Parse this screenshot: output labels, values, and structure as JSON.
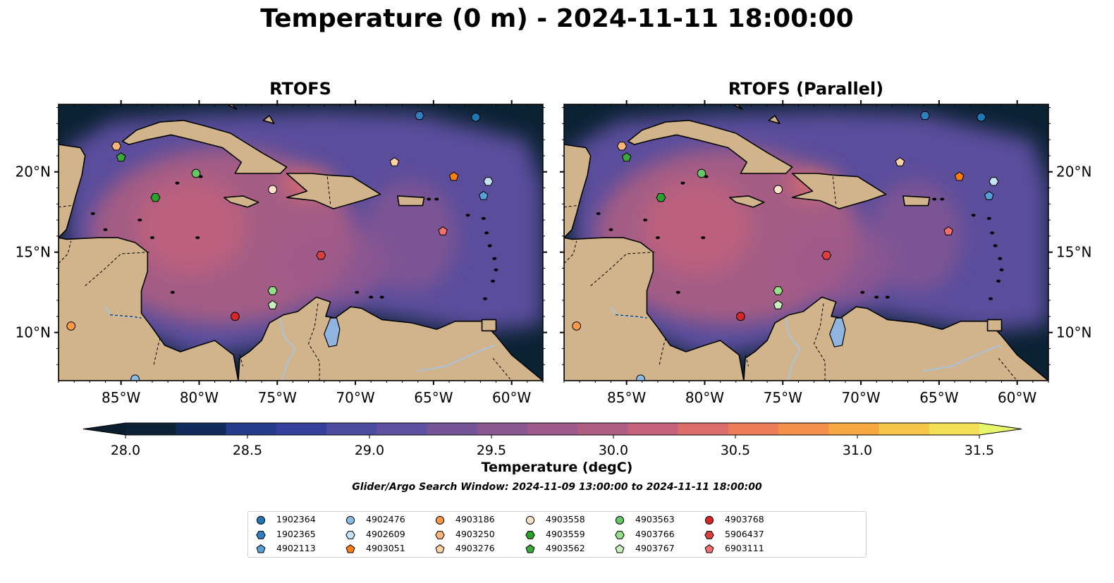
{
  "title": "Temperature (0 m) - 2024-11-11 18:00:00",
  "panels": [
    {
      "title": "RTOFS"
    },
    {
      "title": "RTOFS (Parallel)"
    }
  ],
  "axes": {
    "lon_ticks": [
      "85°W",
      "80°W",
      "75°W",
      "70°W",
      "65°W",
      "60°W"
    ],
    "lon_values": [
      -85,
      -80,
      -75,
      -70,
      -65,
      -60
    ],
    "lat_ticks": [
      "20°N",
      "15°N",
      "10°N"
    ],
    "lat_values": [
      20,
      15,
      10
    ],
    "lon_range": [
      -89,
      -58
    ],
    "lat_range": [
      7,
      24.2
    ]
  },
  "colorbar": {
    "label": "Temperature (degC)",
    "ticks": [
      "28.0",
      "28.5",
      "29.0",
      "29.5",
      "30.0",
      "30.5",
      "31.0",
      "31.5"
    ],
    "tick_values": [
      28.0,
      28.5,
      29.0,
      29.5,
      30.0,
      30.5,
      31.0,
      31.5
    ],
    "range": [
      28.0,
      31.5
    ],
    "step": 0.25,
    "extend": "both",
    "colors": [
      "#0c2133",
      "#112a5c",
      "#243a8a",
      "#34409b",
      "#4b4c9f",
      "#5f51a1",
      "#745497",
      "#8a5790",
      "#9e5a8b",
      "#b05d82",
      "#c6627a",
      "#dc6d6a",
      "#ee7c59",
      "#f5904a",
      "#f7a740",
      "#f5c649",
      "#f3df55"
    ],
    "extend_low": "#0b1e2e",
    "extend_high": "#e6f56a"
  },
  "subtitle": "Glider/Argo Search Window: 2024-11-09 13:00:00 to 2024-11-11 18:00:00",
  "colors": {
    "land": "#d2b48c",
    "lake": "#8fb4e0",
    "river": "#a8c4dc",
    "deep_ocean": "#0b2233",
    "mid_ocean": "#5a4d9c",
    "warm_ocean": "#b5607e"
  },
  "legend": [
    {
      "id": "1902364",
      "marker": "circle",
      "color": "#1f77b4"
    },
    {
      "id": "1902365",
      "marker": "hexagon",
      "color": "#2f7fc1"
    },
    {
      "id": "4902113",
      "marker": "pentagon",
      "color": "#5aa0d8"
    },
    {
      "id": "4902476",
      "marker": "circle",
      "color": "#89bde6"
    },
    {
      "id": "4902609",
      "marker": "hexagon",
      "color": "#c6e2f5"
    },
    {
      "id": "4903051",
      "marker": "pentagon",
      "color": "#ff7f0e"
    },
    {
      "id": "4903186",
      "marker": "circle",
      "color": "#fd9a45"
    },
    {
      "id": "4903250",
      "marker": "hexagon",
      "color": "#fdb67a"
    },
    {
      "id": "4903276",
      "marker": "pentagon",
      "color": "#ffd2a6"
    },
    {
      "id": "4903558",
      "marker": "circle",
      "color": "#fde3c8"
    },
    {
      "id": "4903559",
      "marker": "hexagon",
      "color": "#2ca02c"
    },
    {
      "id": "4903562",
      "marker": "pentagon",
      "color": "#3aa83a"
    },
    {
      "id": "4903563",
      "marker": "circle",
      "color": "#67c766"
    },
    {
      "id": "4903766",
      "marker": "hexagon",
      "color": "#98df8a"
    },
    {
      "id": "4903767",
      "marker": "pentagon",
      "color": "#c8f0c0"
    },
    {
      "id": "4903768",
      "marker": "circle",
      "color": "#d62728"
    },
    {
      "id": "5906437",
      "marker": "hexagon",
      "color": "#d94040"
    },
    {
      "id": "6903111",
      "marker": "pentagon",
      "color": "#f07070"
    }
  ],
  "floats": [
    {
      "id": "4903250",
      "lon": -85.3,
      "lat": 21.6
    },
    {
      "id": "4903562",
      "lon": -85.0,
      "lat": 20.9
    },
    {
      "id": "4903563",
      "lon": -80.2,
      "lat": 19.9
    },
    {
      "id": "4903559",
      "lon": -82.8,
      "lat": 18.4
    },
    {
      "id": "4903558",
      "lon": -75.3,
      "lat": 18.9
    },
    {
      "id": "1902365",
      "lon": -65.9,
      "lat": 23.5
    },
    {
      "id": "1902364",
      "lon": -62.3,
      "lat": 23.4
    },
    {
      "id": "4903276",
      "lon": -67.5,
      "lat": 20.6
    },
    {
      "id": "4903051",
      "lon": -63.7,
      "lat": 19.7
    },
    {
      "id": "4902609",
      "lon": -61.5,
      "lat": 19.4
    },
    {
      "id": "4902113",
      "lon": -61.8,
      "lat": 18.5
    },
    {
      "id": "6903111",
      "lon": -64.4,
      "lat": 16.3
    },
    {
      "id": "5906437",
      "lon": -72.2,
      "lat": 14.8
    },
    {
      "id": "4903766",
      "lon": -75.3,
      "lat": 12.6
    },
    {
      "id": "4903767",
      "lon": -75.3,
      "lat": 11.7
    },
    {
      "id": "4903768",
      "lon": -77.7,
      "lat": 11.0
    },
    {
      "id": "4903186",
      "lon": -88.2,
      "lat": 10.4
    },
    {
      "id": "4902476",
      "lon": -84.1,
      "lat": 7.1
    }
  ]
}
